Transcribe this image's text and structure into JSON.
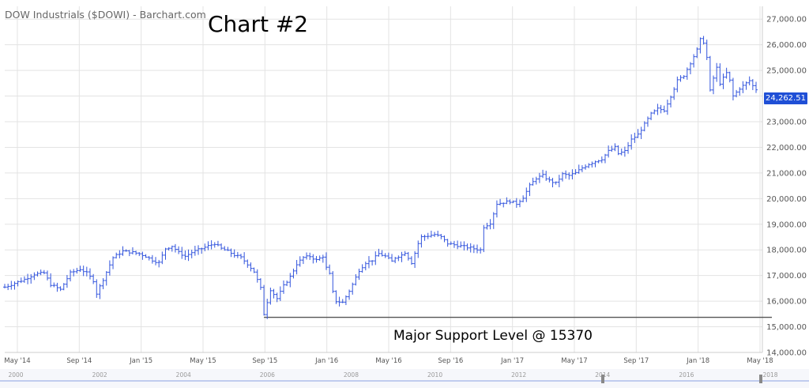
{
  "source_title": "DOW Industrials ($DOWI) - Barchart.com",
  "big_title": "Chart #2",
  "annotation": "Major Support Level @ 15370",
  "last_price_label": "24,262.51",
  "colors": {
    "bars": "#3355dd",
    "grid": "#e3e3e3",
    "support_line": "#555555",
    "tag": "#1f4fd6"
  },
  "navigator": {
    "labels": [
      "2000",
      "2002",
      "2004",
      "2006",
      "2008",
      "2010",
      "2012",
      "2014",
      "2016",
      "2018"
    ]
  },
  "chart_data": {
    "type": "ohlc",
    "title": "DOW Industrials ($DOWI) - Barchart.com",
    "frequency": "weekly",
    "x_range": [
      "May '14",
      "May '18"
    ],
    "x_ticks": [
      "May '14",
      "Sep '14",
      "Jan '15",
      "May '15",
      "Sep '15",
      "Jan '16",
      "May '16",
      "Sep '16",
      "Jan '17",
      "May '17",
      "Sep '17",
      "Jan '18",
      "May '18"
    ],
    "ylim": [
      14000,
      27500
    ],
    "y_ticks": [
      "14,000.00",
      "15,000.00",
      "16,000.00",
      "17,000.00",
      "18,000.00",
      "19,000.00",
      "20,000.00",
      "21,000.00",
      "22,000.00",
      "23,000.00",
      "24,000.00",
      "25,000.00",
      "26,000.00",
      "27,000.00"
    ],
    "y_tick_values": [
      14000,
      15000,
      16000,
      17000,
      18000,
      19000,
      20000,
      21000,
      22000,
      23000,
      24000,
      25000,
      26000,
      27000
    ],
    "grid": true,
    "support_level": 15370,
    "last_price": 24262.51,
    "close_path": [
      [
        0,
        16550
      ],
      [
        6,
        16850
      ],
      [
        9,
        17050
      ],
      [
        12,
        17100
      ],
      [
        14,
        16650
      ],
      [
        17,
        16450
      ],
      [
        20,
        17100
      ],
      [
        23,
        17250
      ],
      [
        25,
        17100
      ],
      [
        27,
        16800
      ],
      [
        28,
        16300
      ],
      [
        30,
        16850
      ],
      [
        33,
        17700
      ],
      [
        36,
        17950
      ],
      [
        39,
        17900
      ],
      [
        41,
        17850
      ],
      [
        43,
        17750
      ],
      [
        45,
        17600
      ],
      [
        47,
        17500
      ],
      [
        49,
        18050
      ],
      [
        51,
        18150
      ],
      [
        53,
        17900
      ],
      [
        55,
        17750
      ],
      [
        57,
        17900
      ],
      [
        60,
        18050
      ],
      [
        62,
        18150
      ],
      [
        64,
        18250
      ],
      [
        66,
        18050
      ],
      [
        68,
        17950
      ],
      [
        70,
        17800
      ],
      [
        72,
        17700
      ],
      [
        74,
        17450
      ],
      [
        76,
        17150
      ],
      [
        78,
        16500
      ],
      [
        79,
        15500
      ],
      [
        81,
        16450
      ],
      [
        83,
        16100
      ],
      [
        85,
        16600
      ],
      [
        87,
        16950
      ],
      [
        89,
        17450
      ],
      [
        91,
        17700
      ],
      [
        93,
        17750
      ],
      [
        95,
        17600
      ],
      [
        97,
        17750
      ],
      [
        98,
        17300
      ],
      [
        99,
        17050
      ],
      [
        100,
        16350
      ],
      [
        101,
        16000
      ],
      [
        103,
        15950
      ],
      [
        105,
        16400
      ],
      [
        106,
        16650
      ],
      [
        108,
        17200
      ],
      [
        110,
        17500
      ],
      [
        112,
        17600
      ],
      [
        114,
        17850
      ],
      [
        116,
        17750
      ],
      [
        118,
        17550
      ],
      [
        119,
        17700
      ],
      [
        121,
        17800
      ],
      [
        122,
        17900
      ],
      [
        124,
        17500
      ],
      [
        126,
        18250
      ],
      [
        127,
        18500
      ],
      [
        129,
        18550
      ],
      [
        131,
        18600
      ],
      [
        133,
        18500
      ],
      [
        135,
        18250
      ],
      [
        137,
        18200
      ],
      [
        139,
        18150
      ],
      [
        141,
        18100
      ],
      [
        143,
        18050
      ],
      [
        145,
        18000
      ],
      [
        146,
        18900
      ],
      [
        148,
        19050
      ],
      [
        150,
        19800
      ],
      [
        152,
        19850
      ],
      [
        154,
        19900
      ],
      [
        156,
        19800
      ],
      [
        158,
        20050
      ],
      [
        160,
        20500
      ],
      [
        162,
        20800
      ],
      [
        164,
        20900
      ],
      [
        166,
        20700
      ],
      [
        168,
        20600
      ],
      [
        170,
        20950
      ],
      [
        172,
        20900
      ],
      [
        174,
        21000
      ],
      [
        176,
        21200
      ],
      [
        178,
        21350
      ],
      [
        180,
        21450
      ],
      [
        182,
        21550
      ],
      [
        184,
        21850
      ],
      [
        186,
        22000
      ],
      [
        187,
        21750
      ],
      [
        189,
        21850
      ],
      [
        191,
        22300
      ],
      [
        193,
        22500
      ],
      [
        195,
        22900
      ],
      [
        197,
        23300
      ],
      [
        199,
        23500
      ],
      [
        201,
        23450
      ],
      [
        203,
        24000
      ],
      [
        205,
        24600
      ],
      [
        207,
        24800
      ],
      [
        209,
        25300
      ],
      [
        211,
        25800
      ],
      [
        212,
        26200
      ],
      [
        213,
        26100
      ],
      [
        214,
        25500
      ],
      [
        215,
        24200
      ],
      [
        216,
        24700
      ],
      [
        217,
        25100
      ],
      [
        218,
        24500
      ],
      [
        220,
        24900
      ],
      [
        221,
        24600
      ],
      [
        222,
        24000
      ],
      [
        224,
        24300
      ],
      [
        225,
        24400
      ],
      [
        227,
        24600
      ],
      [
        228,
        24400
      ],
      [
        229,
        24262.51
      ]
    ]
  }
}
